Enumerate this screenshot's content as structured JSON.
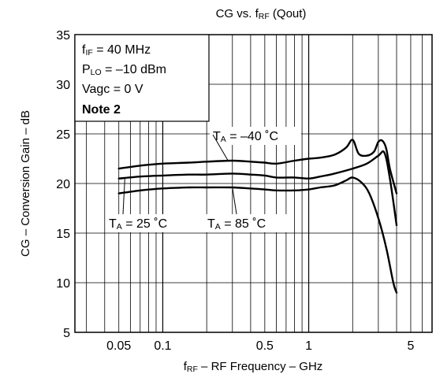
{
  "chart_data": {
    "type": "line",
    "title": {
      "main": "CG vs. f",
      "sub": "RF",
      "rest": " (Qout)"
    },
    "xlabel": {
      "pre": "f",
      "sub": "RF",
      "rest": " – RF Frequency – GHz"
    },
    "ylabel": "CG – Conversion Gain – dB",
    "x_scale": "log",
    "xlim": [
      0.025,
      7
    ],
    "ylim": [
      5,
      35
    ],
    "x_ticks": [
      0.05,
      0.1,
      0.5,
      1,
      5
    ],
    "x_tick_labels": [
      "0.05",
      "0.1",
      "0.5",
      "1",
      "5"
    ],
    "y_ticks": [
      5,
      10,
      15,
      20,
      25,
      30,
      35
    ],
    "y_tick_labels": [
      "5",
      "10",
      "15",
      "20",
      "25",
      "30",
      "35"
    ],
    "grid": true,
    "conditions": [
      {
        "pre": "f",
        "sub": "IF",
        "rest": " = 40 MHz"
      },
      {
        "pre": "P",
        "sub": "LO",
        "rest": " = –10 dBm"
      },
      {
        "pre": "Vagc = 0 V",
        "sub": "",
        "rest": ""
      }
    ],
    "note": "Note 2",
    "series": [
      {
        "name": {
          "pre": "T",
          "sub": "A",
          "rest": " = –40 ˚C"
        },
        "x": [
          0.05,
          0.07,
          0.1,
          0.15,
          0.2,
          0.3,
          0.4,
          0.5,
          0.6,
          0.8,
          1.0,
          1.2,
          1.5,
          1.8,
          2.0,
          2.2,
          2.5,
          2.8,
          3.0,
          3.2,
          3.4,
          3.6,
          4.0
        ],
        "y": [
          21.5,
          21.8,
          22.0,
          22.1,
          22.2,
          22.3,
          22.2,
          22.1,
          22.0,
          22.3,
          22.5,
          22.6,
          22.9,
          23.6,
          24.4,
          23.0,
          22.8,
          23.2,
          24.2,
          24.3,
          23.5,
          21.5,
          19.0
        ]
      },
      {
        "name": {
          "pre": "T",
          "sub": "A",
          "rest": " = 25 ˚C"
        },
        "x": [
          0.05,
          0.07,
          0.1,
          0.15,
          0.2,
          0.3,
          0.4,
          0.5,
          0.6,
          0.8,
          1.0,
          1.2,
          1.5,
          2.0,
          2.5,
          3.0,
          3.3,
          3.6,
          4.0
        ],
        "y": [
          20.5,
          20.7,
          20.8,
          20.9,
          20.9,
          21.0,
          20.9,
          20.8,
          20.6,
          20.6,
          20.5,
          20.7,
          21.0,
          21.5,
          22.0,
          22.8,
          23.1,
          20.5,
          15.8
        ]
      },
      {
        "name": {
          "pre": "T",
          "sub": "A",
          "rest": " = 85 ˚C"
        },
        "x": [
          0.05,
          0.07,
          0.1,
          0.15,
          0.2,
          0.3,
          0.4,
          0.5,
          0.6,
          0.8,
          1.0,
          1.2,
          1.5,
          1.8,
          2.0,
          2.3,
          2.6,
          3.0,
          3.4,
          3.8,
          4.0
        ],
        "y": [
          19.0,
          19.3,
          19.5,
          19.6,
          19.6,
          19.6,
          19.5,
          19.4,
          19.3,
          19.3,
          19.4,
          19.6,
          19.8,
          20.3,
          20.6,
          20.1,
          19.0,
          16.5,
          13.5,
          10.0,
          9.0
        ]
      }
    ]
  }
}
